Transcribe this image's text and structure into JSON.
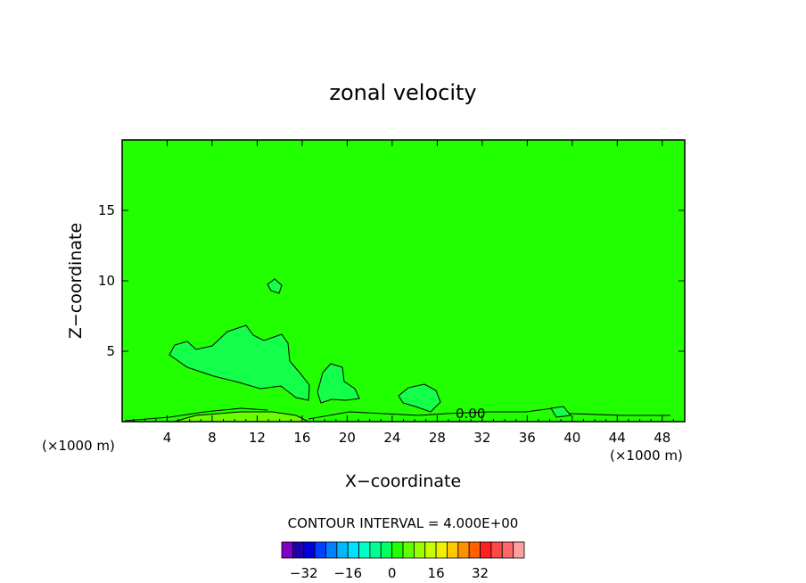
{
  "chart_data": {
    "type": "contour",
    "title": "zonal velocity",
    "xlabel": "X−coordinate",
    "ylabel": "Z−coordinate",
    "x_unit_left": "(×1000 m)",
    "x_unit_right": "(×1000 m)",
    "xlim": [
      0,
      50
    ],
    "ylim": [
      0,
      20
    ],
    "xticks": [
      4,
      8,
      12,
      16,
      20,
      24,
      28,
      32,
      36,
      40,
      44,
      48
    ],
    "yticks": [
      5,
      10,
      15
    ],
    "contour_label": "0.00",
    "contour_interval_text": "CONTOUR INTERVAL = 4.000E+00",
    "background_color": "#22ff00",
    "field": {
      "dominant_level": 0,
      "regions": [
        {
          "name": "upper-left-cell",
          "level": -4,
          "color": "#14ff4a"
        },
        {
          "name": "mid-cell",
          "level": -4,
          "color": "#14ff4a"
        },
        {
          "name": "right-cell",
          "level": -4,
          "color": "#14ff4a"
        },
        {
          "name": "upper-blob",
          "level": -4,
          "color": "#14ff4a"
        },
        {
          "name": "surface-band",
          "level": 4,
          "color": "#6cff00"
        }
      ]
    },
    "colorbar": {
      "colors": [
        "#8000c8",
        "#2000a8",
        "#0000d8",
        "#0040ff",
        "#0080ff",
        "#00b8ff",
        "#00e0ff",
        "#00ffc8",
        "#00ff90",
        "#00ff60",
        "#22ff00",
        "#60ff00",
        "#98ff00",
        "#c8ff00",
        "#f0f000",
        "#ffc800",
        "#ff9000",
        "#ff6000",
        "#ff2020",
        "#ff4848",
        "#ff6868",
        "#ffa0a0"
      ],
      "tick_labels": [
        "−32",
        "−16",
        "0",
        "16",
        "32"
      ],
      "tick_values": [
        -32,
        -16,
        0,
        16,
        32
      ]
    }
  }
}
